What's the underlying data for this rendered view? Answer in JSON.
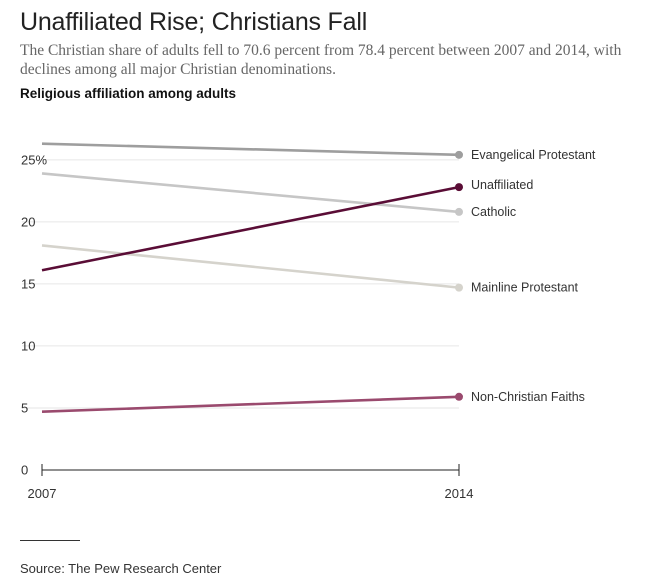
{
  "headline": "Unaffiliated Rise; Christians Fall",
  "subhead": "The Christian share of adults fell to 70.6 percent from 78.4 percent between 2007 and 2014, with declines among all major Christian denominations.",
  "source": "Source: The Pew Research Center",
  "chart_data": {
    "type": "line",
    "title": "Religious affiliation among adults",
    "x": [
      2007,
      2014
    ],
    "x_tick_labels": [
      "2007",
      "2014"
    ],
    "y_ticks": [
      0,
      5,
      10,
      15,
      20,
      25
    ],
    "y_tick_labels": [
      "0",
      "5",
      "10",
      "15",
      "20",
      "25%"
    ],
    "ylim": [
      0,
      27
    ],
    "grid": true,
    "series": [
      {
        "name": "Evangelical Protestant",
        "values": [
          26.3,
          25.4
        ],
        "color": "#9e9e9e"
      },
      {
        "name": "Catholic",
        "values": [
          23.9,
          20.8
        ],
        "color": "#c6c6c6"
      },
      {
        "name": "Mainline Protestant",
        "values": [
          18.1,
          14.7
        ],
        "color": "#d5d3cc"
      },
      {
        "name": "Unaffiliated",
        "values": [
          16.1,
          22.8
        ],
        "color": "#5a0d36"
      },
      {
        "name": "Non-Christian Faiths",
        "values": [
          4.7,
          5.9
        ],
        "color": "#9a4a6e"
      }
    ]
  }
}
